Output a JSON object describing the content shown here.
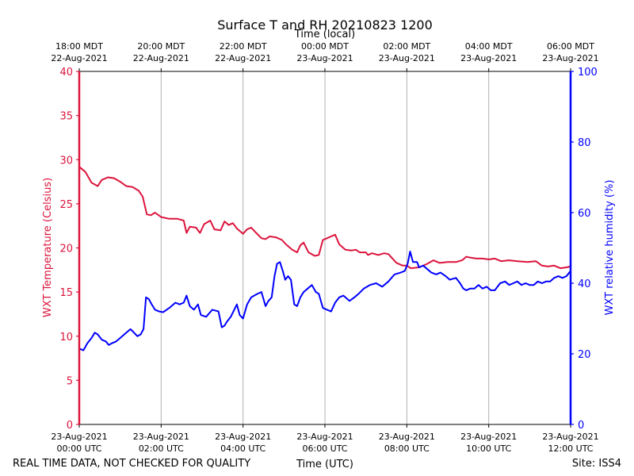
{
  "chart_data": {
    "type": "line",
    "title": "Surface T and RH 20210823 1200",
    "xlabel": "Time (UTC)",
    "xlabel_top": "Time (local)",
    "ylabel_left": "WXT Temperature (Celsius)",
    "ylabel_right": "WXT relative humidity (%)",
    "footer_left": "REAL TIME DATA, NOT CHECKED FOR QUALITY",
    "footer_right": "Site: ISS4",
    "x_range_hours": [
      0,
      12
    ],
    "ylim_left": [
      0,
      40
    ],
    "ylim_right": [
      0,
      100
    ],
    "yticks_left": [
      "0",
      "5",
      "10",
      "15",
      "20",
      "25",
      "30",
      "35",
      "40"
    ],
    "yticks_right": [
      "0",
      "20",
      "40",
      "60",
      "80",
      "100"
    ],
    "grid": "vertical",
    "x_ticks_bottom": [
      {
        "h": 0,
        "line1": "23-Aug-2021",
        "line2": "00:00 UTC"
      },
      {
        "h": 2,
        "line1": "23-Aug-2021",
        "line2": "02:00 UTC"
      },
      {
        "h": 4,
        "line1": "23-Aug-2021",
        "line2": "04:00 UTC"
      },
      {
        "h": 6,
        "line1": "23-Aug-2021",
        "line2": "06:00 UTC"
      },
      {
        "h": 8,
        "line1": "23-Aug-2021",
        "line2": "08:00 UTC"
      },
      {
        "h": 10,
        "line1": "23-Aug-2021",
        "line2": "10:00 UTC"
      },
      {
        "h": 12,
        "line1": "23-Aug-2021",
        "line2": "12:00 UTC"
      }
    ],
    "x_ticks_top": [
      {
        "h": 0,
        "line1": "18:00 MDT",
        "line2": "22-Aug-2021"
      },
      {
        "h": 2,
        "line1": "20:00 MDT",
        "line2": "22-Aug-2021"
      },
      {
        "h": 4,
        "line1": "22:00 MDT",
        "line2": "22-Aug-2021"
      },
      {
        "h": 6,
        "line1": "00:00 MDT",
        "line2": "23-Aug-2021"
      },
      {
        "h": 8,
        "line1": "02:00 MDT",
        "line2": "23-Aug-2021"
      },
      {
        "h": 10,
        "line1": "04:00 MDT",
        "line2": "23-Aug-2021"
      },
      {
        "h": 12,
        "line1": "06:00 MDT",
        "line2": "23-Aug-2021"
      }
    ],
    "series": [
      {
        "name": "WXT Temperature",
        "axis": "left",
        "color": "#dc143c",
        "points": [
          [
            0,
            29.2
          ],
          [
            0.15,
            28.6
          ],
          [
            0.3,
            27.4
          ],
          [
            0.45,
            27.0
          ],
          [
            0.55,
            27.7
          ],
          [
            0.7,
            28.0
          ],
          [
            0.85,
            27.9
          ],
          [
            1.0,
            27.5
          ],
          [
            1.15,
            27.0
          ],
          [
            1.3,
            26.9
          ],
          [
            1.45,
            26.5
          ],
          [
            1.55,
            25.8
          ],
          [
            1.65,
            23.8
          ],
          [
            1.75,
            23.7
          ],
          [
            1.85,
            24.0
          ],
          [
            2.0,
            23.5
          ],
          [
            2.2,
            23.3
          ],
          [
            2.4,
            23.3
          ],
          [
            2.55,
            23.1
          ],
          [
            2.62,
            21.7
          ],
          [
            2.7,
            22.4
          ],
          [
            2.85,
            22.3
          ],
          [
            2.95,
            21.7
          ],
          [
            3.05,
            22.7
          ],
          [
            3.2,
            23.1
          ],
          [
            3.3,
            22.1
          ],
          [
            3.45,
            22.0
          ],
          [
            3.55,
            23.0
          ],
          [
            3.65,
            22.6
          ],
          [
            3.75,
            22.8
          ],
          [
            3.85,
            22.2
          ],
          [
            4.0,
            21.6
          ],
          [
            4.1,
            22.1
          ],
          [
            4.2,
            22.3
          ],
          [
            4.3,
            21.8
          ],
          [
            4.45,
            21.1
          ],
          [
            4.55,
            21.0
          ],
          [
            4.65,
            21.3
          ],
          [
            4.8,
            21.2
          ],
          [
            4.95,
            20.9
          ],
          [
            5.05,
            20.4
          ],
          [
            5.2,
            19.8
          ],
          [
            5.32,
            19.5
          ],
          [
            5.4,
            20.3
          ],
          [
            5.48,
            20.6
          ],
          [
            5.6,
            19.5
          ],
          [
            5.75,
            19.1
          ],
          [
            5.85,
            19.2
          ],
          [
            5.95,
            20.9
          ],
          [
            6.05,
            21.1
          ],
          [
            6.15,
            21.3
          ],
          [
            6.25,
            21.5
          ],
          [
            6.35,
            20.4
          ],
          [
            6.5,
            19.8
          ],
          [
            6.65,
            19.7
          ],
          [
            6.75,
            19.8
          ],
          [
            6.85,
            19.5
          ],
          [
            7.0,
            19.5
          ],
          [
            7.05,
            19.2
          ],
          [
            7.15,
            19.4
          ],
          [
            7.3,
            19.2
          ],
          [
            7.45,
            19.4
          ],
          [
            7.55,
            19.3
          ],
          [
            7.65,
            18.8
          ],
          [
            7.75,
            18.3
          ],
          [
            7.9,
            18.0
          ],
          [
            8.0,
            18.0
          ],
          [
            8.1,
            17.7
          ],
          [
            8.3,
            17.8
          ],
          [
            8.5,
            18.2
          ],
          [
            8.65,
            18.6
          ],
          [
            8.8,
            18.3
          ],
          [
            9.0,
            18.4
          ],
          [
            9.2,
            18.4
          ],
          [
            9.35,
            18.6
          ],
          [
            9.45,
            19.0
          ],
          [
            9.55,
            18.9
          ],
          [
            9.7,
            18.8
          ],
          [
            9.85,
            18.8
          ],
          [
            10.0,
            18.7
          ],
          [
            10.15,
            18.8
          ],
          [
            10.3,
            18.5
          ],
          [
            10.5,
            18.6
          ],
          [
            10.7,
            18.5
          ],
          [
            10.95,
            18.4
          ],
          [
            11.15,
            18.5
          ],
          [
            11.3,
            18.0
          ],
          [
            11.45,
            17.9
          ],
          [
            11.6,
            18.0
          ],
          [
            11.75,
            17.7
          ],
          [
            11.9,
            17.8
          ],
          [
            12.0,
            17.9
          ]
        ]
      },
      {
        "name": "WXT relative humidity",
        "axis": "right",
        "color": "#0000ff",
        "points": [
          [
            0,
            21.5
          ],
          [
            0.1,
            21.0
          ],
          [
            0.2,
            23.0
          ],
          [
            0.3,
            24.5
          ],
          [
            0.38,
            26.0
          ],
          [
            0.45,
            25.5
          ],
          [
            0.55,
            24.0
          ],
          [
            0.65,
            23.5
          ],
          [
            0.72,
            22.5
          ],
          [
            0.8,
            23.0
          ],
          [
            0.9,
            23.5
          ],
          [
            1.0,
            24.5
          ],
          [
            1.1,
            25.5
          ],
          [
            1.2,
            26.5
          ],
          [
            1.25,
            27.0
          ],
          [
            1.32,
            26.2
          ],
          [
            1.42,
            25.0
          ],
          [
            1.5,
            25.5
          ],
          [
            1.57,
            27.0
          ],
          [
            1.63,
            36.0
          ],
          [
            1.7,
            35.5
          ],
          [
            1.77,
            34.0
          ],
          [
            1.85,
            32.5
          ],
          [
            1.95,
            32.0
          ],
          [
            2.05,
            31.8
          ],
          [
            2.2,
            33.0
          ],
          [
            2.35,
            34.5
          ],
          [
            2.45,
            34.0
          ],
          [
            2.55,
            34.5
          ],
          [
            2.62,
            36.5
          ],
          [
            2.7,
            33.5
          ],
          [
            2.8,
            32.5
          ],
          [
            2.9,
            34.0
          ],
          [
            2.97,
            31.0
          ],
          [
            3.1,
            30.5
          ],
          [
            3.25,
            32.5
          ],
          [
            3.4,
            32.0
          ],
          [
            3.48,
            27.5
          ],
          [
            3.55,
            28.0
          ],
          [
            3.6,
            29.0
          ],
          [
            3.7,
            30.5
          ],
          [
            3.85,
            34.0
          ],
          [
            3.92,
            31.0
          ],
          [
            4.0,
            30.0
          ],
          [
            4.1,
            34.0
          ],
          [
            4.2,
            36.0
          ],
          [
            4.35,
            37.0
          ],
          [
            4.45,
            37.5
          ],
          [
            4.55,
            33.5
          ],
          [
            4.62,
            35.0
          ],
          [
            4.7,
            36.0
          ],
          [
            4.77,
            42.0
          ],
          [
            4.83,
            45.5
          ],
          [
            4.9,
            46.0
          ],
          [
            4.97,
            43.5
          ],
          [
            5.03,
            41.0
          ],
          [
            5.1,
            42.0
          ],
          [
            5.17,
            41.0
          ],
          [
            5.25,
            34.0
          ],
          [
            5.32,
            33.5
          ],
          [
            5.4,
            36.0
          ],
          [
            5.48,
            37.5
          ],
          [
            5.58,
            38.5
          ],
          [
            5.68,
            39.5
          ],
          [
            5.78,
            37.5
          ],
          [
            5.85,
            37.0
          ],
          [
            5.95,
            33.0
          ],
          [
            6.05,
            32.5
          ],
          [
            6.15,
            32.0
          ],
          [
            6.25,
            34.5
          ],
          [
            6.35,
            36.0
          ],
          [
            6.45,
            36.5
          ],
          [
            6.6,
            35.0
          ],
          [
            6.72,
            36.0
          ],
          [
            6.82,
            37.0
          ],
          [
            6.95,
            38.5
          ],
          [
            7.1,
            39.5
          ],
          [
            7.25,
            40.0
          ],
          [
            7.4,
            39.0
          ],
          [
            7.55,
            40.5
          ],
          [
            7.7,
            42.5
          ],
          [
            7.85,
            43.0
          ],
          [
            7.95,
            43.5
          ],
          [
            8.02,
            45.5
          ],
          [
            8.08,
            49.0
          ],
          [
            8.15,
            46.0
          ],
          [
            8.25,
            46.0
          ],
          [
            8.3,
            44.5
          ],
          [
            8.4,
            45.0
          ],
          [
            8.5,
            44.0
          ],
          [
            8.6,
            43.0
          ],
          [
            8.72,
            42.5
          ],
          [
            8.82,
            43.0
          ],
          [
            8.95,
            42.0
          ],
          [
            9.05,
            41.0
          ],
          [
            9.2,
            41.5
          ],
          [
            9.3,
            40.0
          ],
          [
            9.38,
            38.5
          ],
          [
            9.45,
            38.0
          ],
          [
            9.55,
            38.5
          ],
          [
            9.65,
            38.5
          ],
          [
            9.75,
            39.5
          ],
          [
            9.85,
            38.5
          ],
          [
            9.95,
            39.0
          ],
          [
            10.05,
            38.0
          ],
          [
            10.15,
            38.0
          ],
          [
            10.28,
            40.0
          ],
          [
            10.4,
            40.5
          ],
          [
            10.5,
            39.5
          ],
          [
            10.6,
            40.0
          ],
          [
            10.7,
            40.5
          ],
          [
            10.8,
            39.5
          ],
          [
            10.9,
            40.0
          ],
          [
            11.0,
            39.5
          ],
          [
            11.1,
            39.5
          ],
          [
            11.2,
            40.5
          ],
          [
            11.3,
            40.0
          ],
          [
            11.4,
            40.5
          ],
          [
            11.5,
            40.5
          ],
          [
            11.6,
            41.5
          ],
          [
            11.7,
            42.0
          ],
          [
            11.8,
            41.5
          ],
          [
            11.9,
            42.0
          ],
          [
            12.0,
            43.5
          ]
        ]
      }
    ]
  }
}
